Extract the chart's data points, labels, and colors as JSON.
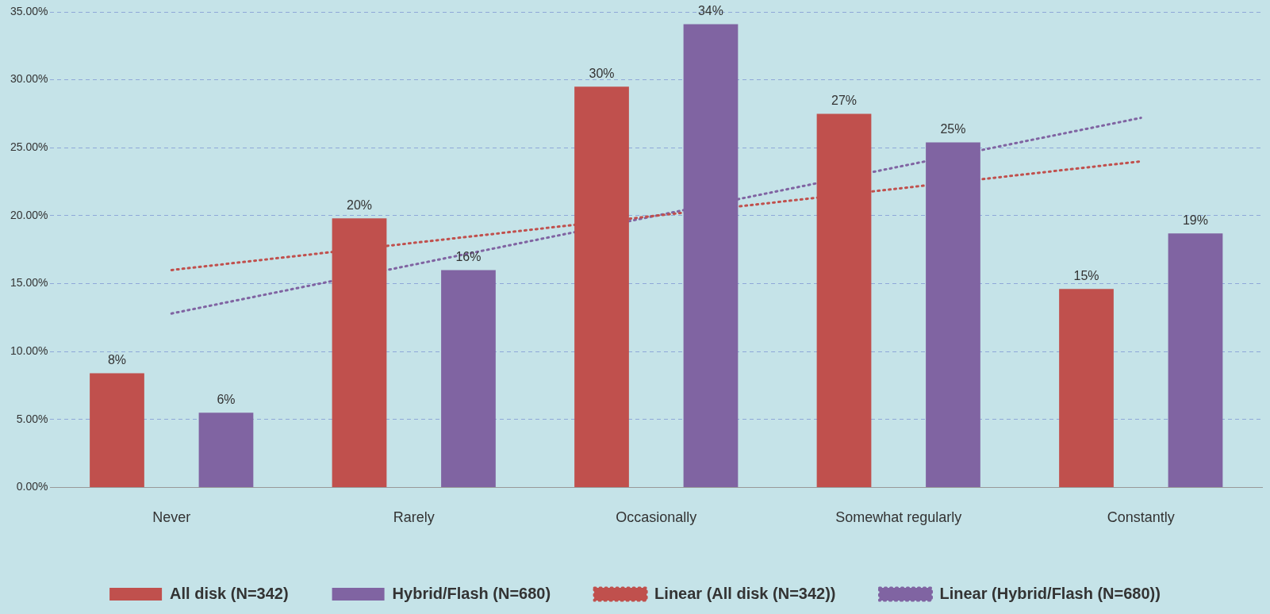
{
  "chart_data": {
    "type": "bar",
    "categories": [
      "Never",
      "Rarely",
      "Occasionally",
      "Somewhat regularly",
      "Constantly"
    ],
    "series": [
      {
        "name": "All disk (N=342)",
        "color": "#c0504d",
        "values": [
          8.4,
          19.8,
          29.5,
          27.5,
          14.6
        ],
        "value_labels": [
          "8%",
          "20%",
          "30%",
          "27%",
          "15%"
        ]
      },
      {
        "name": "Hybrid/Flash (N=680)",
        "color": "#8064a2",
        "values": [
          5.5,
          16.0,
          34.1,
          25.4,
          18.7
        ],
        "value_labels": [
          "6%",
          "16%",
          "34%",
          "25%",
          "19%"
        ]
      },
      {
        "name": "Linear (All disk (N=342))",
        "type": "line",
        "color": "#c0504d",
        "line_style": "dotted",
        "values": [
          16.0,
          18.0,
          20.0,
          22.0,
          24.0
        ]
      },
      {
        "name": "Linear (Hybrid/Flash (N=680))",
        "type": "line",
        "color": "#8064a2",
        "line_style": "dotted",
        "values": [
          12.8,
          16.4,
          20.0,
          23.6,
          27.2
        ]
      }
    ],
    "ylim": [
      0,
      35
    ],
    "yticks": [
      {
        "value": 0,
        "label": "0.00%"
      },
      {
        "value": 5,
        "label": "5.00%"
      },
      {
        "value": 10,
        "label": "10.00%"
      },
      {
        "value": 15,
        "label": "15.00%"
      },
      {
        "value": 20,
        "label": "20.00%"
      },
      {
        "value": 25,
        "label": "25.00%"
      },
      {
        "value": 30,
        "label": "30.00%"
      },
      {
        "value": 35,
        "label": "35.00%"
      }
    ],
    "grid": "y",
    "legend": "bottom",
    "marker": "none"
  }
}
